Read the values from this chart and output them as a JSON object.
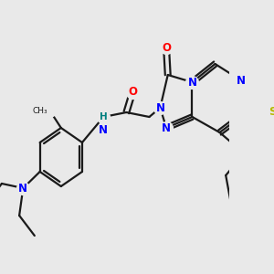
{
  "background_color": "#e9e9e9",
  "bond_color": "#1a1a1a",
  "bond_width": 1.6,
  "atom_colors": {
    "N": "#0000ff",
    "O": "#ff0000",
    "S": "#b8b800",
    "H": "#008080",
    "C": "#1a1a1a"
  },
  "figsize": [
    3.0,
    3.0
  ],
  "dpi": 100
}
